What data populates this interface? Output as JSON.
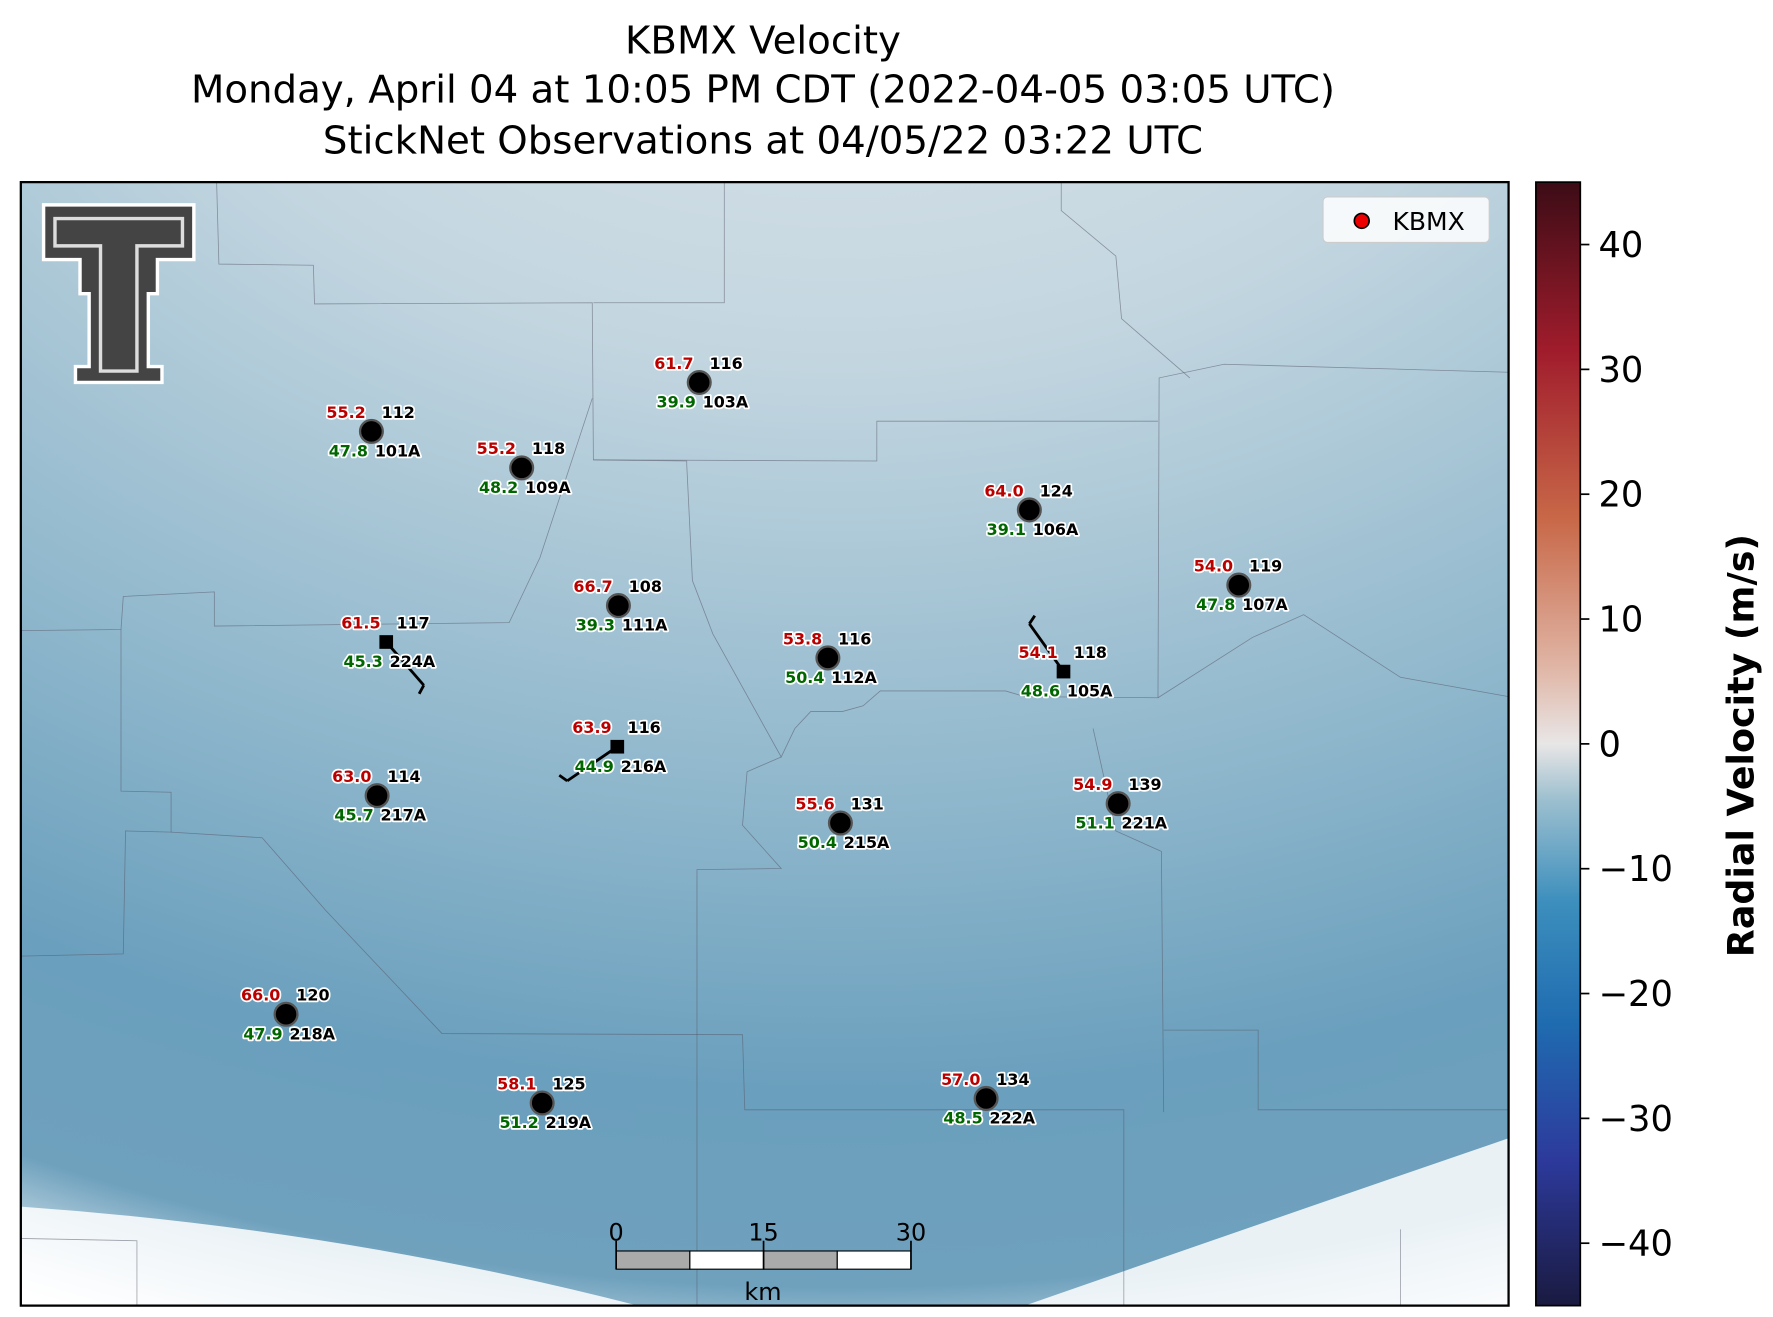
{
  "title": [
    "KBMX Velocity",
    "Monday, April 04 at 10:05 PM CDT (2022-04-05 03:05 UTC)",
    "StickNet Observations at 04/05/22 03:22 UTC"
  ],
  "legend": "KBMX",
  "stations": [
    {
      "id": "101A",
      "top": "112",
      "temperature": "55.2",
      "dewpoint": "47.8"
    },
    {
      "id": "109A",
      "top": "118",
      "temperature": "55.2",
      "dewpoint": "48.2"
    },
    {
      "id": "103A",
      "top": "116",
      "temperature": "61.7",
      "dewpoint": "39.9"
    },
    {
      "id": "106A",
      "top": "124",
      "temperature": "64.0",
      "dewpoint": "39.1"
    },
    {
      "id": "107A",
      "top": "119",
      "temperature": "54.0",
      "dewpoint": "47.8"
    },
    {
      "id": "111A",
      "top": "108",
      "temperature": "66.7",
      "dewpoint": "39.3"
    },
    {
      "id": "224A",
      "top": "117",
      "temperature": "61.5",
      "dewpoint": "45.3"
    },
    {
      "id": "112A",
      "top": "116",
      "temperature": "53.8",
      "dewpoint": "50.4"
    },
    {
      "id": "105A",
      "top": "118",
      "temperature": "54.1",
      "dewpoint": "48.6"
    },
    {
      "id": "216A",
      "top": "116",
      "temperature": "63.9",
      "dewpoint": "44.9"
    },
    {
      "id": "217A",
      "top": "114",
      "temperature": "63.0",
      "dewpoint": "45.7"
    },
    {
      "id": "215A",
      "top": "131",
      "temperature": "55.6",
      "dewpoint": "50.4"
    },
    {
      "id": "221A",
      "top": "139",
      "temperature": "54.9",
      "dewpoint": "51.1"
    },
    {
      "id": "218A",
      "top": "120",
      "temperature": "66.0",
      "dewpoint": "47.9"
    },
    {
      "id": "219A",
      "top": "125",
      "temperature": "58.1",
      "dewpoint": "51.2"
    },
    {
      "id": "222A",
      "top": "134",
      "temperature": "57.0",
      "dewpoint": "48.5"
    }
  ],
  "scale_bar": {
    "label": "km",
    "xlim": [
      0,
      30
    ],
    "xticks": [
      0,
      15,
      30
    ]
  },
  "colorbar": {
    "label": "Radial Velocity (m/s)",
    "ylim": [
      -45,
      45
    ],
    "yticks": [
      {
        "value": -40,
        "label": "−40"
      },
      {
        "value": -30,
        "label": "−30"
      },
      {
        "value": -20,
        "label": "−20"
      },
      {
        "value": -10,
        "label": "−10"
      },
      0,
      10,
      20,
      30,
      40
    ]
  }
}
